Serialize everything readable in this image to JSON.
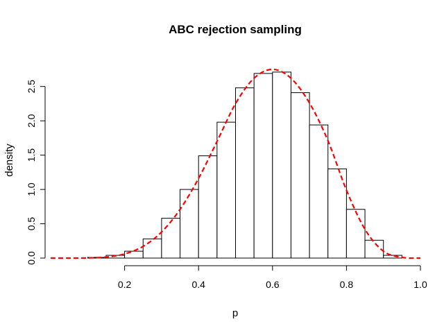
{
  "chart_data": {
    "type": "histogram",
    "title": "ABC rejection sampling",
    "xlabel": "p",
    "ylabel": "density",
    "xlim": [
      0.0,
      1.0
    ],
    "ylim": [
      0.0,
      2.8
    ],
    "x_ticks": [
      0.2,
      0.4,
      0.6,
      0.8,
      1.0
    ],
    "x_tick_labels": [
      "0.2",
      "0.4",
      "0.6",
      "0.8",
      "1.0"
    ],
    "y_ticks": [
      0.0,
      0.5,
      1.0,
      1.5,
      2.0,
      2.5
    ],
    "y_tick_labels": [
      "0.0",
      "0.5",
      "1.0",
      "1.5",
      "2.0",
      "2.5"
    ],
    "bins": [
      {
        "x0": 0.1,
        "x1": 0.15,
        "density": 0.01
      },
      {
        "x0": 0.15,
        "x1": 0.2,
        "density": 0.04
      },
      {
        "x0": 0.2,
        "x1": 0.25,
        "density": 0.1
      },
      {
        "x0": 0.25,
        "x1": 0.3,
        "density": 0.28
      },
      {
        "x0": 0.3,
        "x1": 0.35,
        "density": 0.58
      },
      {
        "x0": 0.35,
        "x1": 0.4,
        "density": 1.0
      },
      {
        "x0": 0.4,
        "x1": 0.45,
        "density": 1.49
      },
      {
        "x0": 0.45,
        "x1": 0.5,
        "density": 1.98
      },
      {
        "x0": 0.5,
        "x1": 0.55,
        "density": 2.48
      },
      {
        "x0": 0.55,
        "x1": 0.6,
        "density": 2.69
      },
      {
        "x0": 0.6,
        "x1": 0.65,
        "density": 2.71
      },
      {
        "x0": 0.65,
        "x1": 0.7,
        "density": 2.41
      },
      {
        "x0": 0.7,
        "x1": 0.75,
        "density": 1.94
      },
      {
        "x0": 0.75,
        "x1": 0.8,
        "density": 1.3
      },
      {
        "x0": 0.8,
        "x1": 0.85,
        "density": 0.71
      },
      {
        "x0": 0.85,
        "x1": 0.9,
        "density": 0.26
      },
      {
        "x0": 0.9,
        "x1": 0.95,
        "density": 0.04
      }
    ],
    "overlay_curve": {
      "style": "dashed",
      "color": "#ff0000",
      "x": [
        0.0,
        0.05,
        0.1,
        0.15,
        0.2,
        0.25,
        0.3,
        0.35,
        0.4,
        0.45,
        0.5,
        0.55,
        0.6,
        0.65,
        0.7,
        0.75,
        0.8,
        0.85,
        0.9,
        0.95,
        1.0
      ],
      "y": [
        0.0,
        0.0,
        0.002,
        0.015,
        0.06,
        0.17,
        0.38,
        0.71,
        1.16,
        1.7,
        2.25,
        2.62,
        2.75,
        2.62,
        2.26,
        1.71,
        0.99,
        0.42,
        0.1,
        0.01,
        0.0
      ]
    },
    "grid": false
  }
}
